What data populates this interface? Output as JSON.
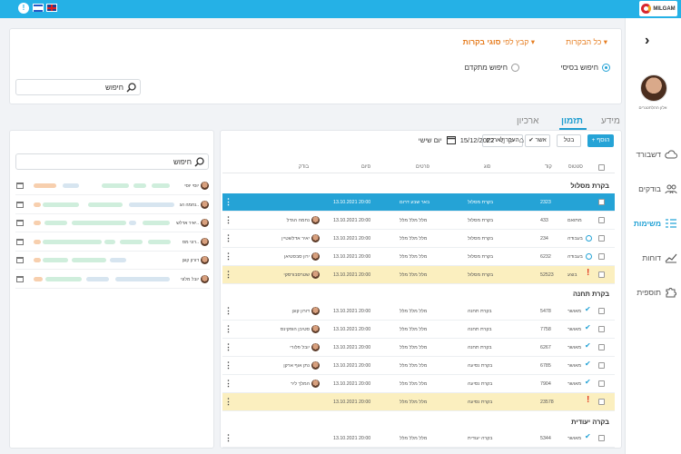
{
  "topbar": {
    "brand": "MILGAM",
    "help_icon": "exclamation-icon",
    "flags": [
      "israel-flag",
      "uk-flag"
    ],
    "help_glyph": "!"
  },
  "sidebar": {
    "user_name": "אלון ההלחטנרים",
    "items": [
      {
        "label": "דשבורד",
        "icon": "cloud-icon"
      },
      {
        "label": "בודקים",
        "icon": "users-icon"
      },
      {
        "label": "משימות",
        "icon": "tasks-icon",
        "active": true
      },
      {
        "label": "דוחות",
        "icon": "chart-icon"
      },
      {
        "label": "תוספית",
        "icon": "puzzle-icon"
      }
    ],
    "collapse_glyph": "›"
  },
  "filters": {
    "all_visits": "כל הבקרות",
    "group_by_prefix": "קבץ לפי",
    "group_by_value": "סוגי בקרות",
    "basic_search": "חיפוש בסיסי",
    "advanced_search": "חיפוש מתקדם",
    "search_label": "חיפוש"
  },
  "tabs": [
    "מידע",
    "תזמון",
    "ארכיון"
  ],
  "toolbar": {
    "add": "+ הוסף",
    "cancel": "בטל",
    "approve": "✔ אשר",
    "move": "העבר לארכיון"
  },
  "columns": {
    "status": "סטטוס",
    "code": "קוד",
    "type": "סוג",
    "details": "פרטים",
    "end": "סיום",
    "inspector": "בודק"
  },
  "groups": [
    {
      "title": "בקרת מסלול"
    },
    {
      "title": "בקרת תחנה"
    },
    {
      "title": "בקרה יעודית"
    }
  ],
  "rows": [
    {
      "status": "",
      "code": "2323",
      "type": "בקרת מסלול",
      "details": "באר שבע דרום",
      "end": "13.10.2021 20:00",
      "inspector": "",
      "selected": true
    },
    {
      "status": "מתואם",
      "code": "433",
      "type": "בקרת מסלול",
      "details": "מלל מלל מלל",
      "end": "13.10.2021 20:00",
      "inspector": "נחמה הגדל"
    },
    {
      "status": "בעבודה",
      "code": "234",
      "type": "בקרת מסלול",
      "details": "מלל מלל מלל",
      "end": "13.10.2021 20:00",
      "inspector": "יאיר אדלשטיין"
    },
    {
      "status": "בעבודה",
      "code": "6232",
      "type": "בקרת מסלול",
      "details": "מלל מלל מלל",
      "end": "13.10.2021 20:00",
      "inspector": "ירון סבסטיאן"
    },
    {
      "status": "בוצע",
      "code": "52523",
      "type": "בקרת מסלול",
      "details": "מלל מלל מלל",
      "end": "13.10.2021 20:00",
      "inspector": "שטרסבורסקי",
      "warn": true
    },
    {
      "status": "מאושר",
      "code": "5478",
      "type": "בקרת תחנה",
      "details": "מלל מלל מלל",
      "end": "13.10.2021 20:00",
      "inspector": "דורון קוגן"
    },
    {
      "status": "מאושר",
      "code": "7758",
      "type": "בקרת תחנה",
      "details": "מלל מלל מלל",
      "end": "13.10.2021 20:00",
      "inspector": "סטיבן הופקינס"
    },
    {
      "status": "מאושר",
      "code": "6267",
      "type": "בקרת תחנה",
      "details": "מלל מלל מלל",
      "end": "13.10.2021 20:00",
      "inspector": "יובל פלורי"
    },
    {
      "status": "מאושר",
      "code": "6785",
      "type": "בקרת נסיעה",
      "details": "מלל מלל מלל",
      "end": "13.10.2021 20:00",
      "inspector": "נתן אוף ארקן"
    },
    {
      "status": "מאושר",
      "code": "7904",
      "type": "בקרת נסיעה",
      "details": "מלל מלל מלל",
      "end": "13.10.2021 20:00",
      "inspector": "המלך ליר"
    },
    {
      "status": "",
      "code": "23578",
      "type": "בקרת נסיעה",
      "details": "מלל מלל מלל",
      "end": "13.10.2021 20:00",
      "inspector": "",
      "warn": true
    },
    {
      "status": "מאושר",
      "code": "5344",
      "type": "בקרה יעודית",
      "details": "מלל מלל מלל",
      "end": "13.10.2021 20:00",
      "inspector": ""
    }
  ],
  "schedule": {
    "day": "יום שישי",
    "date": "15/12/2022",
    "search": "חיפוש",
    "people": [
      "יוסי יוסי",
      "נחמה הג..",
      "יאיר אדלש..",
      "רוני מס..",
      "דורון קוגן",
      "יובל מלוני"
    ]
  },
  "colors": {
    "accent": "#25a3d6",
    "topbar": "#25b1e6",
    "warn": "#fbefbf",
    "orange": "#e67e22"
  }
}
